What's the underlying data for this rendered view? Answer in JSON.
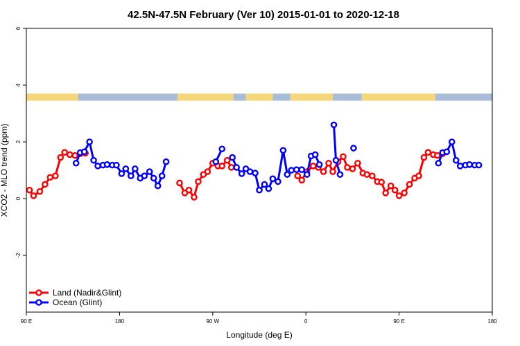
{
  "chart_data": {
    "type": "line",
    "title": "42.5N-47.5N February (Ver 10)   2015-01-01 to 2020-12-18",
    "xlabel": "Longitude (deg E)",
    "ylabel": "XCO2 - MLO trend (ppm)",
    "xlim": [
      90,
      540
    ],
    "ylim": [
      -4,
      6
    ],
    "x_ticks": [
      {
        "value": 90,
        "label": "90 E"
      },
      {
        "value": 180,
        "label": "180"
      },
      {
        "value": 270,
        "label": "90 W"
      },
      {
        "value": 360,
        "label": "0"
      },
      {
        "value": 450,
        "label": "90 E"
      },
      {
        "value": 540,
        "label": "180"
      }
    ],
    "y_ticks": [
      {
        "value": -2,
        "label": "-2"
      },
      {
        "value": 0,
        "label": "0"
      },
      {
        "value": 2,
        "label": "2"
      },
      {
        "value": 4,
        "label": "4"
      },
      {
        "value": 6,
        "label": "6"
      }
    ],
    "land_ocean_strip": {
      "y_range": [
        3.45,
        3.7
      ],
      "land_color": "#f5d67a",
      "ocean_color": "#a9bdd9",
      "segments": [
        {
          "type": "land",
          "start": 90,
          "end": 140
        },
        {
          "type": "ocean",
          "start": 140,
          "end": 236
        },
        {
          "type": "land",
          "start": 236,
          "end": 290
        },
        {
          "type": "ocean",
          "start": 290,
          "end": 302
        },
        {
          "type": "land",
          "start": 302,
          "end": 328
        },
        {
          "type": "ocean",
          "start": 328,
          "end": 345
        },
        {
          "type": "land",
          "start": 345,
          "end": 386
        },
        {
          "type": "ocean",
          "start": 386,
          "end": 414
        },
        {
          "type": "land",
          "start": 414,
          "end": 485
        },
        {
          "type": "ocean",
          "start": 485,
          "end": 540
        }
      ]
    },
    "legend": {
      "position": "bottom-left"
    },
    "series": [
      {
        "name": "Land (Nadir&Glint)",
        "color": "#ff0000",
        "segments": [
          [
            [
              93,
              0.3
            ],
            [
              97,
              0.1
            ],
            [
              103,
              0.25
            ],
            [
              108,
              0.5
            ],
            [
              113,
              0.75
            ],
            [
              118,
              0.8
            ],
            [
              123,
              1.45
            ],
            [
              127,
              1.63
            ],
            [
              132,
              1.55
            ],
            [
              137,
              1.52
            ],
            [
              142,
              1.58
            ],
            [
              147,
              1.6
            ]
          ],
          [
            [
              238,
              0.55
            ],
            [
              243,
              0.2
            ],
            [
              247,
              0.3
            ],
            [
              252,
              0.05
            ],
            [
              256,
              0.6
            ],
            [
              261,
              0.85
            ],
            [
              265,
              0.95
            ],
            [
              270,
              1.25
            ],
            [
              275,
              1.15
            ],
            [
              279,
              1.15
            ],
            [
              284,
              1.35
            ],
            [
              288,
              1.1
            ]
          ],
          [
            [
              352,
              0.8
            ],
            [
              356,
              0.65
            ],
            [
              361,
              0.95
            ],
            [
              367,
              1.15
            ],
            [
              372,
              1.1
            ],
            [
              377,
              0.95
            ],
            [
              382,
              1.25
            ],
            [
              386,
              0.95
            ],
            [
              391,
              1.3
            ],
            [
              396,
              1.48
            ],
            [
              400,
              1.1
            ],
            [
              405,
              1.05
            ],
            [
              410,
              1.25
            ],
            [
              415,
              0.9
            ],
            [
              419,
              0.85
            ],
            [
              424,
              0.8
            ],
            [
              429,
              0.6
            ],
            [
              433,
              0.58
            ],
            [
              437,
              0.2
            ],
            [
              442,
              0.45
            ],
            [
              446,
              0.3
            ],
            [
              450,
              0.1
            ],
            [
              455,
              0.2
            ],
            [
              460,
              0.5
            ],
            [
              465,
              0.72
            ],
            [
              469,
              0.8
            ],
            [
              474,
              1.45
            ],
            [
              478,
              1.63
            ],
            [
              483,
              1.55
            ],
            [
              487,
              1.52
            ],
            [
              492,
              1.58
            ]
          ]
        ]
      },
      {
        "name": "Ocean (Glint)",
        "color": "#0000ff",
        "segments": [
          [
            [
              138,
              1.25
            ],
            [
              142,
              1.62
            ],
            [
              146,
              1.65
            ],
            [
              151,
              2.0
            ],
            [
              155,
              1.35
            ],
            [
              159,
              1.15
            ],
            [
              164,
              1.18
            ],
            [
              168,
              1.2
            ],
            [
              173,
              1.18
            ],
            [
              177,
              1.18
            ],
            [
              182,
              0.88
            ],
            [
              186,
              1.05
            ],
            [
              191,
              0.8
            ],
            [
              195,
              1.05
            ],
            [
              200,
              0.72
            ],
            [
              204,
              0.8
            ],
            [
              209,
              0.95
            ],
            [
              213,
              0.72
            ],
            [
              217,
              0.45
            ],
            [
              221,
              0.8
            ],
            [
              225,
              1.3
            ]
          ],
          [
            [
              273,
              1.3
            ],
            [
              279,
              1.75
            ]
          ],
          [
            [
              289,
              1.45
            ],
            [
              293,
              1.1
            ],
            [
              298,
              0.88
            ],
            [
              302,
              1.05
            ],
            [
              306,
              0.95
            ],
            [
              311,
              0.9
            ],
            [
              315,
              0.3
            ],
            [
              320,
              0.5
            ],
            [
              324,
              0.35
            ],
            [
              328,
              0.7
            ],
            [
              333,
              0.6
            ],
            [
              338,
              1.7
            ],
            [
              342,
              0.85
            ],
            [
              346,
              1.0
            ],
            [
              351,
              1.02
            ],
            [
              356,
              1.02
            ],
            [
              361,
              0.85
            ],
            [
              365,
              1.5
            ],
            [
              369,
              1.55
            ],
            [
              373,
              1.2
            ]
          ],
          [
            [
              387,
              2.6
            ],
            [
              389,
              1.35
            ],
            [
              393,
              0.85
            ]
          ],
          [
            [
              406,
              1.78
            ]
          ],
          [
            [
              488,
              1.25
            ],
            [
              492,
              1.62
            ],
            [
              496,
              1.65
            ],
            [
              501,
              2.0
            ],
            [
              505,
              1.35
            ],
            [
              509,
              1.15
            ],
            [
              514,
              1.18
            ],
            [
              518,
              1.2
            ],
            [
              523,
              1.18
            ],
            [
              527,
              1.18
            ]
          ]
        ]
      }
    ]
  }
}
